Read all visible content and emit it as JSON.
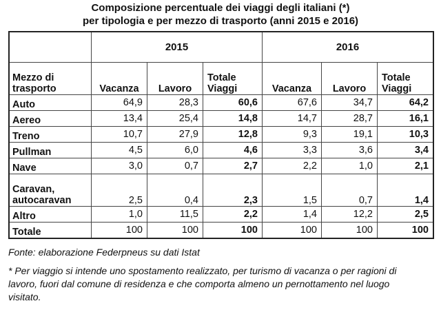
{
  "title": [
    "Composizione percentuale dei viaggi degli italiani (*)",
    "per tipologia e per mezzo di trasporto (anni 2015 e 2016)"
  ],
  "table": {
    "years": [
      "2015",
      "2016"
    ],
    "row_header": "Mezzo di\ntrasporto",
    "columns": [
      "Vacanza",
      "Lavoro",
      "Totale\nViaggi",
      "Vacanza",
      "Lavoro",
      "Totale\nViaggi"
    ],
    "rows": [
      [
        "Auto",
        "64,9",
        "28,3",
        "60,6",
        "67,6",
        "34,7",
        "64,2"
      ],
      [
        "Aereo",
        "13,4",
        "25,4",
        "14,8",
        "14,7",
        "28,7",
        "16,1"
      ],
      [
        "Treno",
        "10,7",
        "27,9",
        "12,8",
        "9,3",
        "19,1",
        "10,3"
      ],
      [
        "Pullman",
        "4,5",
        "6,0",
        "4,6",
        "3,3",
        "3,6",
        "3,4"
      ],
      [
        "Nave",
        "3,0",
        "0,7",
        "2,7",
        "2,2",
        "1,0",
        "2,1"
      ],
      [
        "Caravan,\nautocaravan",
        "2,5",
        "0,4",
        "2,3",
        "1,5",
        "0,7",
        "1,4"
      ],
      [
        "Altro",
        "1,0",
        "11,5",
        "2,2",
        "1,4",
        "12,2",
        "2,5"
      ],
      [
        "Totale",
        "100",
        "100",
        "100",
        "100",
        "100",
        "100"
      ]
    ]
  },
  "footer": {
    "source": "Fonte: elaborazione Federpneus su dati Istat",
    "note": "* Per viaggio si intende uno spostamento realizzato, per turismo di vacanza o per ragioni di lavoro, fuori dal comune di residenza e che comporta almeno un pernottamento nel luogo visitato."
  }
}
